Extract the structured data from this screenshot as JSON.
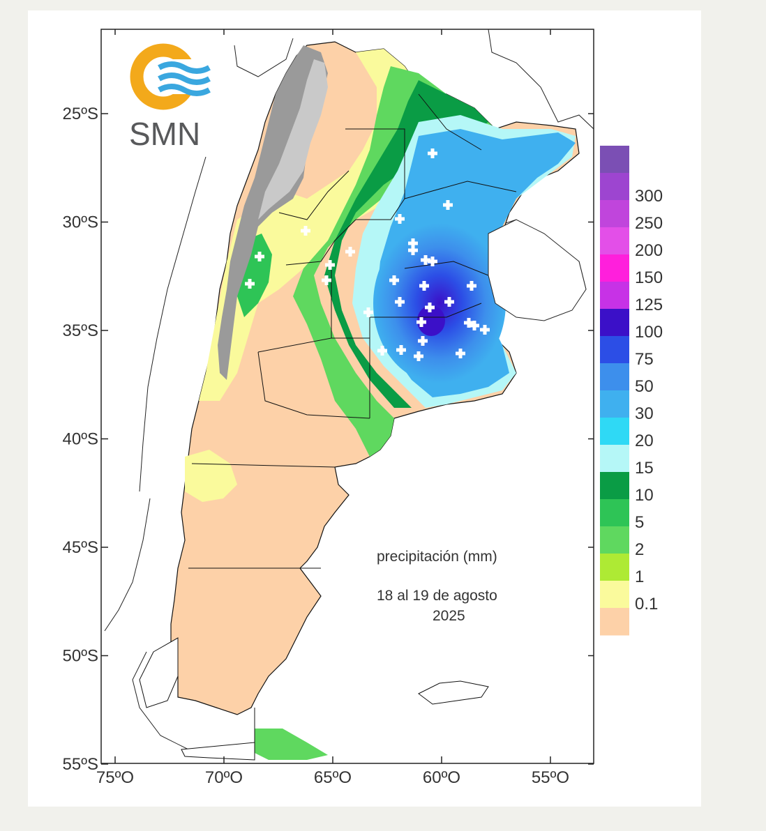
{
  "logo": {
    "text": "SMN",
    "ring_color": "#f3a91b",
    "wave_color": "#3aa7df"
  },
  "caption": {
    "title": "precipitación (mm)",
    "period_line1": "18 al 19 de agosto",
    "period_line2": "2025"
  },
  "chart_data": {
    "type": "heatmap",
    "title": "precipitación (mm)",
    "subtitle": "18 al 19 de agosto 2025",
    "lat_ticks": [
      "25ºS",
      "30ºS",
      "35ºS",
      "40ºS",
      "45ºS",
      "50ºS",
      "55ºS"
    ],
    "lon_ticks": [
      "75ºO",
      "70ºO",
      "65ºO",
      "60ºO",
      "55ºO"
    ],
    "lat_range": [
      -55,
      -22
    ],
    "lon_range": [
      -76,
      -53
    ],
    "colorbar": {
      "labels": [
        "300",
        "250",
        "200",
        "150",
        "125",
        "100",
        "75",
        "50",
        "30",
        "20",
        "15",
        "10",
        "5",
        "2",
        "1",
        "0.1"
      ],
      "colors": [
        "#7b4fb4",
        "#9d45d0",
        "#c045dc",
        "#e34fe8",
        "#ff1fdc",
        "#c732e6",
        "#3b10c8",
        "#2c4ee6",
        "#3d8fec",
        "#3fb0ef",
        "#2fd9f5",
        "#b5f7f7",
        "#0a9c45",
        "#2ec456",
        "#5fd85f",
        "#aeea34",
        "#fafa9c",
        "#fdd1a8"
      ]
    },
    "stations_marker": "white cross"
  }
}
